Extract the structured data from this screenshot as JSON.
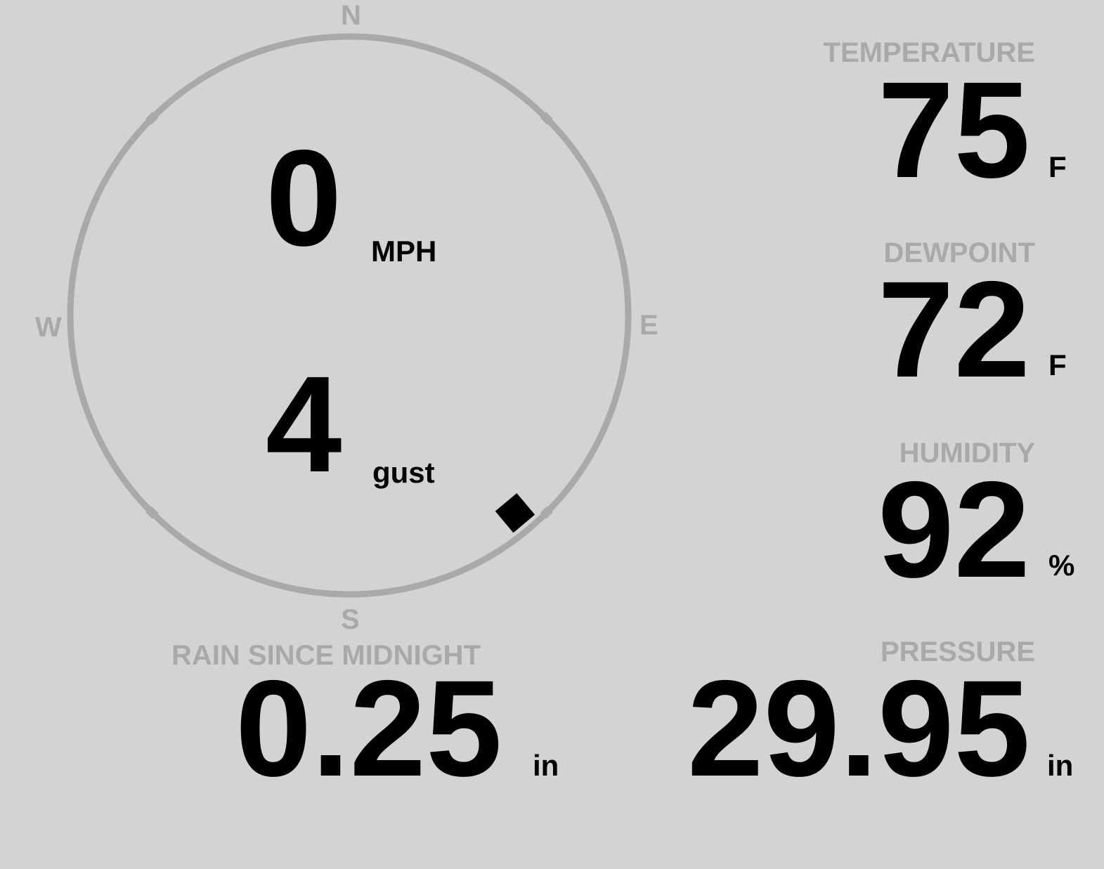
{
  "wind": {
    "speed": "0",
    "speed_unit": "MPH",
    "gust": "4",
    "gust_label": "gust",
    "direction_degrees": 140,
    "compass": {
      "n": "N",
      "e": "E",
      "s": "S",
      "w": "W"
    }
  },
  "temperature": {
    "label": "TEMPERATURE",
    "value": "75",
    "unit": "F"
  },
  "dewpoint": {
    "label": "DEWPOINT",
    "value": "72",
    "unit": "F"
  },
  "humidity": {
    "label": "HUMIDITY",
    "value": "92",
    "unit": "%"
  },
  "rain": {
    "label": "RAIN SINCE MIDNIGHT",
    "value": "0.25",
    "unit": "in"
  },
  "pressure": {
    "label": "PRESSURE",
    "value": "29.95",
    "unit": "in"
  },
  "colors": {
    "background": "#d3d3d3",
    "label": "#a9a9a9",
    "value": "#000000"
  }
}
